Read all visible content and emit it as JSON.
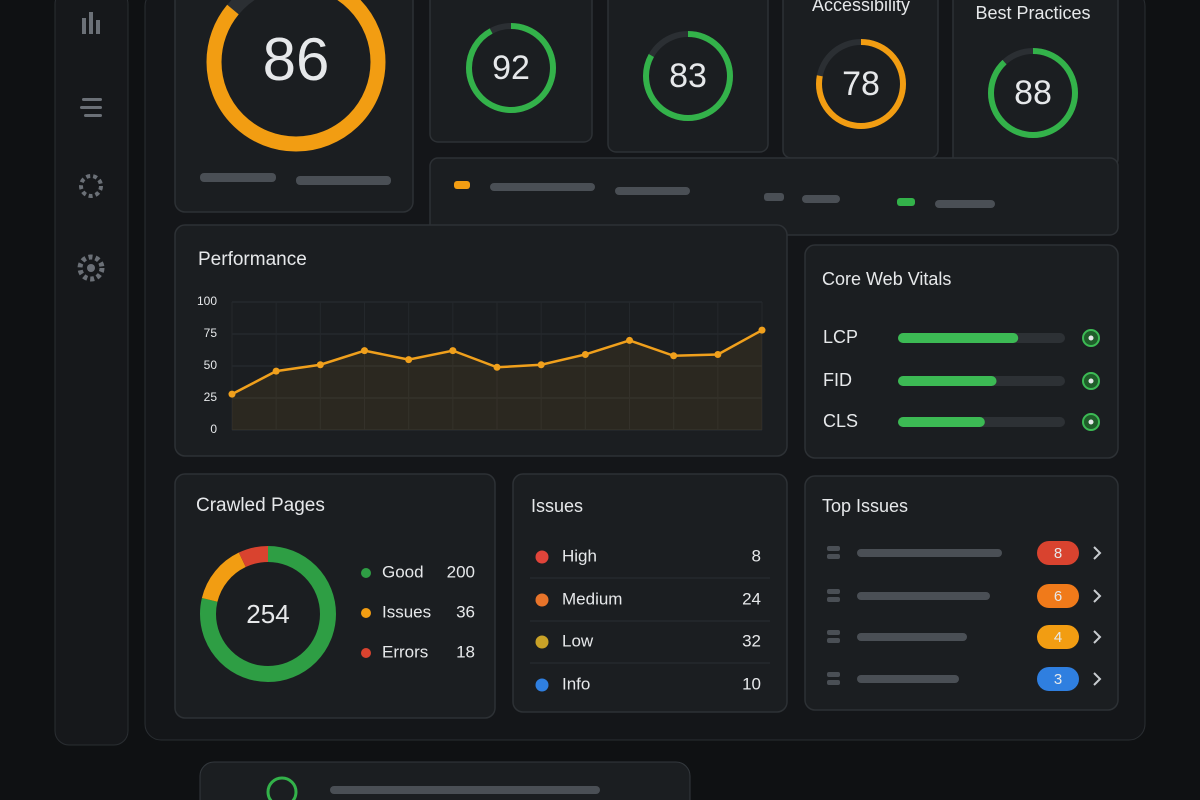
{
  "scores": {
    "range": [
      0,
      100
    ],
    "main": {
      "value": 86,
      "color": "#f29d12"
    },
    "cards": [
      {
        "value": 92,
        "color": "#33b24a"
      },
      {
        "value": 83,
        "color": "#33b24a"
      },
      {
        "label": "Accessibility",
        "value": 78,
        "color": "#f29d12"
      },
      {
        "label": "Best Practices",
        "value": 88,
        "color": "#33b24a"
      }
    ]
  },
  "performance": {
    "title": "Performance",
    "color": "#f0a01c",
    "ylim": [
      0,
      100
    ],
    "yticks": [
      0,
      25,
      50,
      75,
      100
    ],
    "values": [
      28,
      46,
      51,
      62,
      55,
      62,
      49,
      51,
      59,
      70,
      58,
      59,
      78
    ]
  },
  "vitals": {
    "title": "Core Web Vitals",
    "range": [
      0,
      100
    ],
    "color": "#3cba54",
    "items": [
      {
        "label": "LCP",
        "value": 72
      },
      {
        "label": "FID",
        "value": 59
      },
      {
        "label": "CLS",
        "value": 52
      }
    ]
  },
  "crawled": {
    "title": "Crawled Pages",
    "total": 254,
    "items": [
      {
        "label": "Good",
        "value": 200,
        "color": "#2e9e44"
      },
      {
        "label": "Issues",
        "value": 36,
        "color": "#f29d12"
      },
      {
        "label": "Errors",
        "value": 18,
        "color": "#d9432f"
      }
    ]
  },
  "issues": {
    "title": "Issues",
    "items": [
      {
        "label": "High",
        "value": 8,
        "color": "#e0443a"
      },
      {
        "label": "Medium",
        "value": 24,
        "color": "#e8742a"
      },
      {
        "label": "Low",
        "value": 32,
        "color": "#c9a227"
      },
      {
        "label": "Info",
        "value": 10,
        "color": "#2f7fe0"
      }
    ]
  },
  "top_issues": {
    "title": "Top Issues",
    "items": [
      {
        "value": 8,
        "color": "#d9432f"
      },
      {
        "value": 6,
        "color": "#f07a1a"
      },
      {
        "value": 4,
        "color": "#f29d12"
      },
      {
        "value": 3,
        "color": "#2f7fe0"
      }
    ]
  }
}
